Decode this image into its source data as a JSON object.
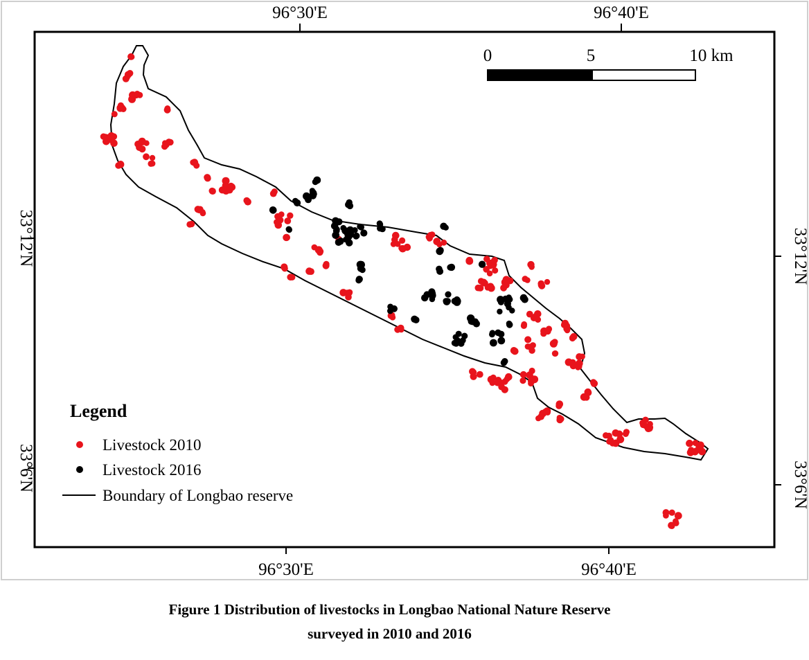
{
  "figure": {
    "caption_line_1": "Figure 1  Distribution of livestocks in Longbao National Nature Reserve",
    "caption_line_2": "surveyed in 2010 and 2016"
  },
  "map": {
    "top_ticks": [
      "96°30'E",
      "96°40'E"
    ],
    "bottom_ticks": [
      "96°30'E",
      "96°40'E"
    ],
    "left_ticks": [
      "33°12'N",
      "33°6'N"
    ],
    "right_ticks": [
      "33°12'N",
      "33°6'N"
    ],
    "scale_bar": {
      "labels": [
        "0",
        "5",
        "10 km"
      ],
      "colors": [
        "#000000",
        "#ffffff"
      ]
    },
    "legend": {
      "title": "Legend",
      "items": [
        {
          "label": "Livestock 2010",
          "symbol": "dot",
          "color": "#e8141c"
        },
        {
          "label": "Livestock 2016",
          "symbol": "dot",
          "color": "#000000"
        },
        {
          "label": "Boundary of Longbao reserve",
          "symbol": "line",
          "color": "#000000"
        }
      ]
    }
  }
}
